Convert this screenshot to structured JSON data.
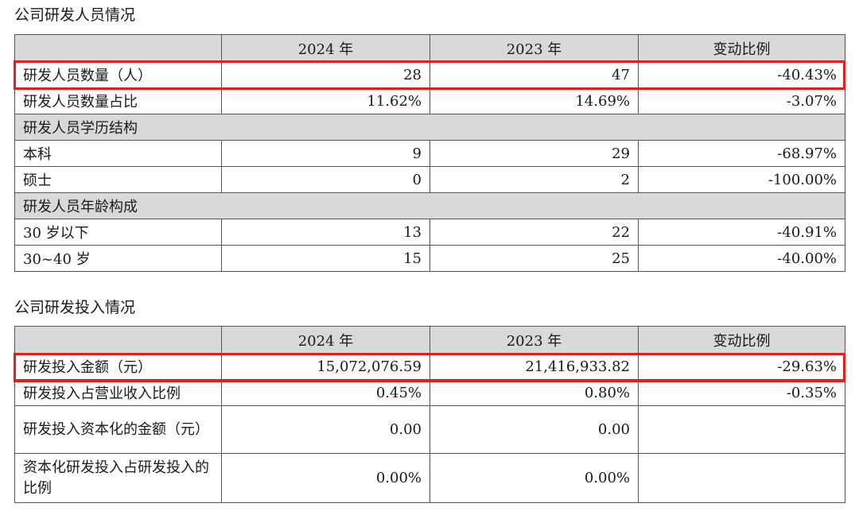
{
  "section1": {
    "title": "公司研发人员情况",
    "headers": [
      "",
      "2024 年",
      "2023 年",
      "变动比例"
    ],
    "rows": [
      {
        "type": "data",
        "cells": [
          "研发人员数量（人）",
          "28",
          "47",
          "-40.43%"
        ]
      },
      {
        "type": "data",
        "cells": [
          "研发人员数量占比",
          "11.62%",
          "14.69%",
          "-3.07%"
        ]
      },
      {
        "type": "group",
        "cells": [
          "研发人员学历结构"
        ]
      },
      {
        "type": "data",
        "cells": [
          "本科",
          "9",
          "29",
          "-68.97%"
        ]
      },
      {
        "type": "data",
        "cells": [
          "硕士",
          "0",
          "2",
          "-100.00%"
        ]
      },
      {
        "type": "group",
        "cells": [
          "研发人员年龄构成"
        ]
      },
      {
        "type": "data",
        "cells": [
          "30 岁以下",
          "13",
          "22",
          "-40.91%"
        ]
      },
      {
        "type": "data",
        "cells": [
          "30~40 岁",
          "15",
          "25",
          "-40.00%"
        ]
      }
    ]
  },
  "section2": {
    "title": "公司研发投入情况",
    "headers": [
      "",
      "2024 年",
      "2023 年",
      "变动比例"
    ],
    "rows": [
      {
        "type": "data",
        "cells": [
          "研发投入金额（元）",
          "15,072,076.59",
          "21,416,933.82",
          "-29.63%"
        ]
      },
      {
        "type": "data",
        "cells": [
          "研发投入占营业收入比例",
          "0.45%",
          "0.80%",
          "-0.35%"
        ]
      },
      {
        "type": "data",
        "cells": [
          "研发投入资本化的金额（元）",
          "0.00",
          "0.00",
          ""
        ]
      },
      {
        "type": "data",
        "cells": [
          "资本化研发投入占研发投入的比例",
          "0.00%",
          "0.00%",
          ""
        ]
      }
    ]
  },
  "highlight_color": "#e0201c"
}
